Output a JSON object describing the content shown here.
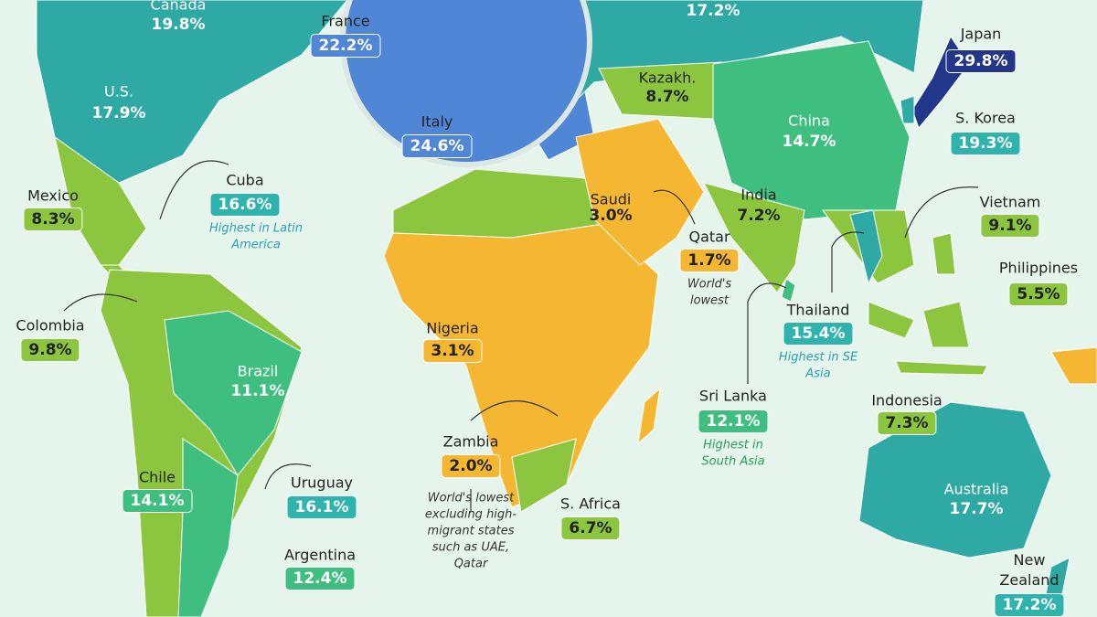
{
  "labels": [
    {
      "name": "Canada",
      "value": "19.8%"
    },
    {
      "value": "17.2%"
    },
    {
      "name": "France",
      "value": "22.2%"
    },
    {
      "name": "Japan",
      "value": "29.8%"
    },
    {
      "name": "Kazakh.",
      "value": "8.7%"
    },
    {
      "name": "U.S.",
      "value": "17.9%"
    },
    {
      "name": "Italy",
      "value": "24.6%"
    },
    {
      "name": "China",
      "value": "14.7%"
    },
    {
      "name": "S. Korea",
      "value": "19.3%"
    },
    {
      "name": "Cuba",
      "value": "16.6%",
      "note": [
        "Highest in Latin",
        "America"
      ]
    },
    {
      "name": "Mexico",
      "value": "8.3%"
    },
    {
      "name": "Saudi",
      "value": "3.0%"
    },
    {
      "name": "India",
      "value": "7.2%"
    },
    {
      "name": "Qatar",
      "value": "1.7%",
      "note": [
        "World's",
        "lowest"
      ]
    },
    {
      "name": "Vietnam",
      "value": "9.1%"
    },
    {
      "name": "Philippines",
      "value": "5.5%"
    },
    {
      "name": "Colombia",
      "value": "9.8%"
    },
    {
      "name": "Thailand",
      "value": "15.4%",
      "note": [
        "Highest in SE",
        "Asia"
      ]
    },
    {
      "name": "Nigeria",
      "value": "3.1%"
    },
    {
      "name": "Brazil",
      "value": "11.1%"
    },
    {
      "name": "Sri Lanka",
      "value": "12.1%",
      "note": [
        "Highest in",
        "South Asia"
      ]
    },
    {
      "name": "Indonesia",
      "value": "7.3%"
    },
    {
      "name": "Zambia",
      "value": "2.0%",
      "note": [
        "World's lowest",
        "excluding high-",
        "migrant states",
        "such as UAE,",
        "Qatar"
      ]
    },
    {
      "name": "Chile",
      "value": "14.1%"
    },
    {
      "name": "Uruguay",
      "value": "16.1%"
    },
    {
      "name": "S. Africa",
      "value": "6.7%"
    },
    {
      "name": "Australia",
      "value": "17.7%"
    },
    {
      "name": "Argentina",
      "value": "12.4%"
    },
    {
      "name": "New Zealand",
      "value": "17.2%"
    }
  ]
}
